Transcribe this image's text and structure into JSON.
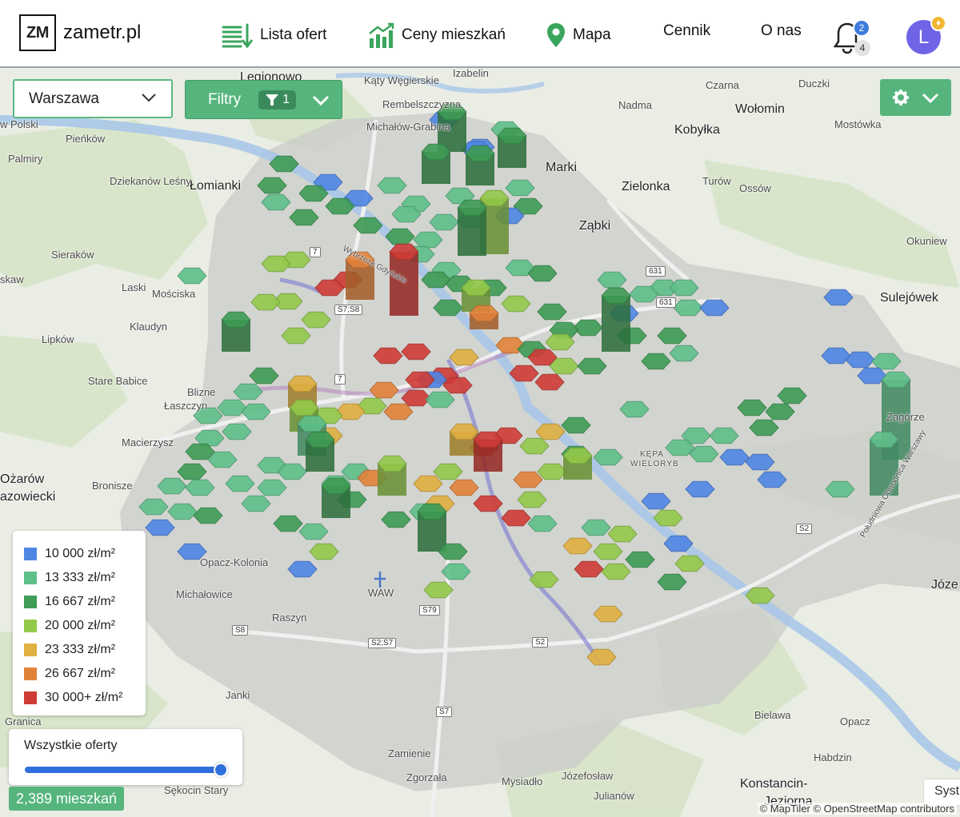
{
  "header": {
    "logo_mark": "ZM",
    "logo_text": "zametr.pl",
    "nav": [
      {
        "label": "Lista ofert",
        "icon": "list-download-icon"
      },
      {
        "label": "Ceny mieszkań",
        "icon": "price-chart-icon"
      },
      {
        "label": "Mapa",
        "icon": "map-pin-icon"
      },
      {
        "label": "Cennik",
        "icon": null
      },
      {
        "label": "O nas",
        "icon": null
      }
    ],
    "notifications_primary": "2",
    "notifications_secondary": "4",
    "avatar_letter": "L"
  },
  "controls": {
    "city": "Warszawa",
    "filters_label": "Filtry",
    "filters_count": "1"
  },
  "legend": [
    {
      "label": "10 000 zł/m²",
      "color": "#4f86e4"
    },
    {
      "label": "13 333 zł/m²",
      "color": "#5fbf8a"
    },
    {
      "label": "16 667 zł/m²",
      "color": "#3e9c55"
    },
    {
      "label": "20 000 zł/m²",
      "color": "#93c94a"
    },
    {
      "label": "23 333 zł/m²",
      "color": "#e0b040"
    },
    {
      "label": "26 667 zł/m²",
      "color": "#e2823a"
    },
    {
      "label": "30 000+ zł/m²",
      "color": "#cf3c36"
    }
  ],
  "range": {
    "label": "Wszystkie oferty",
    "value": 1.0
  },
  "listing_count": "2,389 mieszkań",
  "map": {
    "places": [
      "Legionowo",
      "Kąty Węgierskie",
      "Izabelin",
      "Czarna",
      "Duczki",
      "Rembelszczyzna",
      "Nadma",
      "Wołomin",
      "Kobyłka",
      "Michałów-Grabina",
      "Mostówka",
      "w Polski",
      "Pieńków",
      "Palmiry",
      "Dziekanów Leśny",
      "Łomianki",
      "Marki",
      "Zielonka",
      "Turów",
      "Ossów",
      "Ząbki",
      "Okuniew",
      "Sieraków",
      "Laski",
      "Mościska",
      "skaw",
      "Sulejówek",
      "Klaudyn",
      "Lipków",
      "Stare Babice",
      "Blizne",
      "Łaszczyn",
      "Zagórze",
      "Macierzysz",
      "Ożarów",
      "azowiecki",
      "Bronisze",
      "KĘPA",
      "WIELORYB",
      "Opacz-Kolonia",
      "Józe",
      "Michałowice",
      "Raszyn",
      "WAW",
      "Janki",
      "Granica",
      "Zamienie",
      "Zgorzała",
      "Mysiadło",
      "Józefosław",
      "Julianów",
      "Sękocin Stary",
      "Bielawa",
      "Opacz",
      "Habdzin",
      "Konstancin-",
      "Jeziorna",
      "Wybrzeże Gdyńskie",
      "Południowa Obwodnica Warszawy"
    ],
    "road_numbers": [
      "7",
      "S7;S8",
      "7",
      "631",
      "631",
      "S2",
      "S8",
      "S79",
      "S2;S7",
      "S2",
      "S7"
    ]
  },
  "attribution": "© MapTiler © OpenStreetMap contributors",
  "sys_label": "Syst"
}
